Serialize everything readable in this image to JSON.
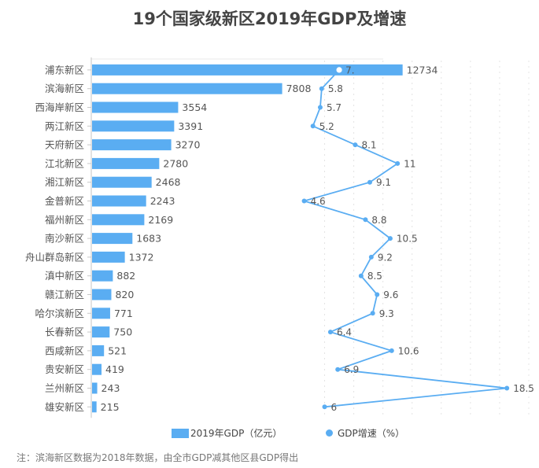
{
  "chart_data": {
    "type": "bar+line",
    "title": "19个国家级新区2019年GDP及增速",
    "categories": [
      "浦东新区",
      "滨海新区",
      "西海岸新区",
      "两江新区",
      "天府新区",
      "江北新区",
      "湘江新区",
      "金普新区",
      "福州新区",
      "南沙新区",
      "舟山群岛新区",
      "滇中新区",
      "赣江新区",
      "哈尔滨新区",
      "长春新区",
      "西咸新区",
      "贵安新区",
      "兰州新区",
      "雄安新区"
    ],
    "series": [
      {
        "name": "2019年GDP（亿元）",
        "type": "bar",
        "values": [
          12734,
          7808,
          3554,
          3391,
          3270,
          2780,
          2468,
          2243,
          2169,
          1683,
          1372,
          882,
          820,
          771,
          750,
          521,
          419,
          243,
          215
        ]
      },
      {
        "name": "GDP增速（%）",
        "type": "line",
        "values": [
          7,
          5.8,
          5.7,
          5.2,
          8.1,
          11,
          9.1,
          4.6,
          8.8,
          10.5,
          9.2,
          8.5,
          9.6,
          9.3,
          6.4,
          10.6,
          6.9,
          18.5,
          6
        ],
        "labels": [
          "7.",
          "5.8",
          "5.7",
          "5.2",
          "8.1",
          "11",
          "9.1",
          "4.6",
          "8.8",
          "10.5",
          "9.2",
          "8.5",
          "9.6",
          "9.3",
          "6.4",
          "10.6",
          "6.9",
          "18.5",
          "6"
        ]
      }
    ],
    "bar_axis_range": [
      0,
      14000
    ],
    "line_axis_range": [
      -10,
      20
    ],
    "grid": true,
    "legend": "bottom",
    "colors": {
      "bar": "#5aadf2",
      "line": "#5aadf2"
    }
  },
  "legend": {
    "bar_label": "2019年GDP（亿元）",
    "line_label": "GDP增速（%）"
  },
  "footnote": "注：滨海新区数据为2018年数据，由全市GDP减其他区县GDP得出"
}
